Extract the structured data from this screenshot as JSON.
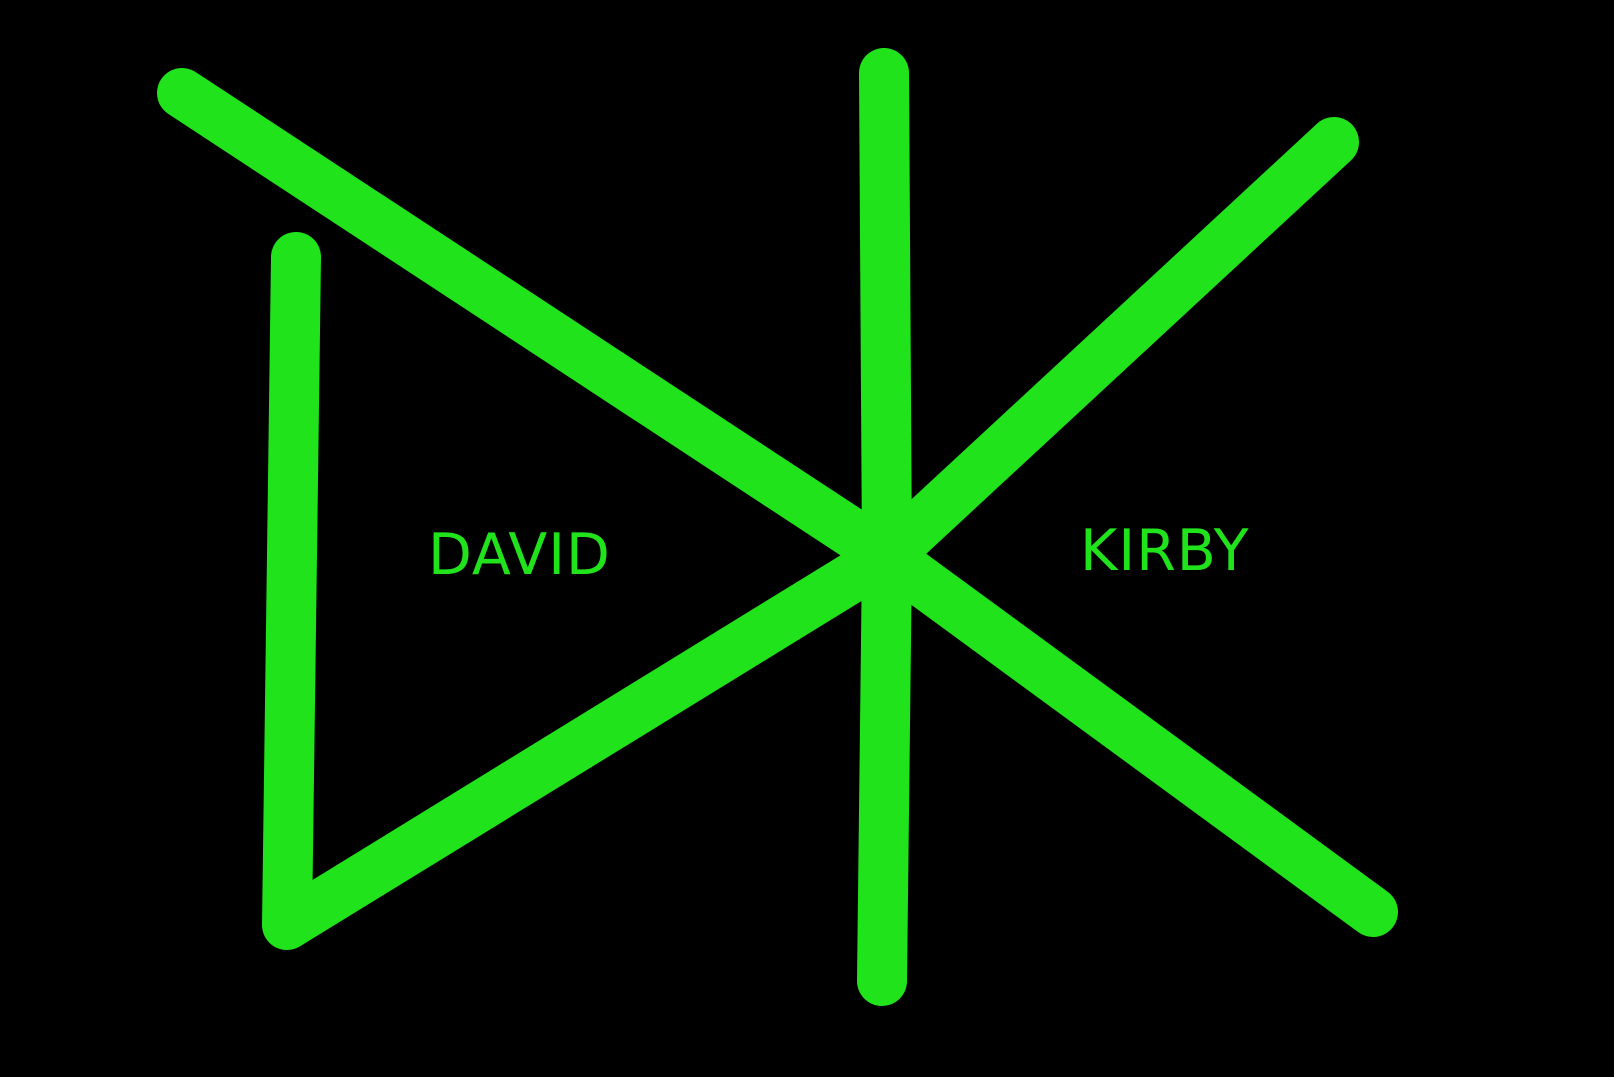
{
  "colors": {
    "background": "#000000",
    "stroke": "#20E31C",
    "text": "#20E31C"
  },
  "words": {
    "left": "DAVID",
    "right": "KIRBY"
  }
}
